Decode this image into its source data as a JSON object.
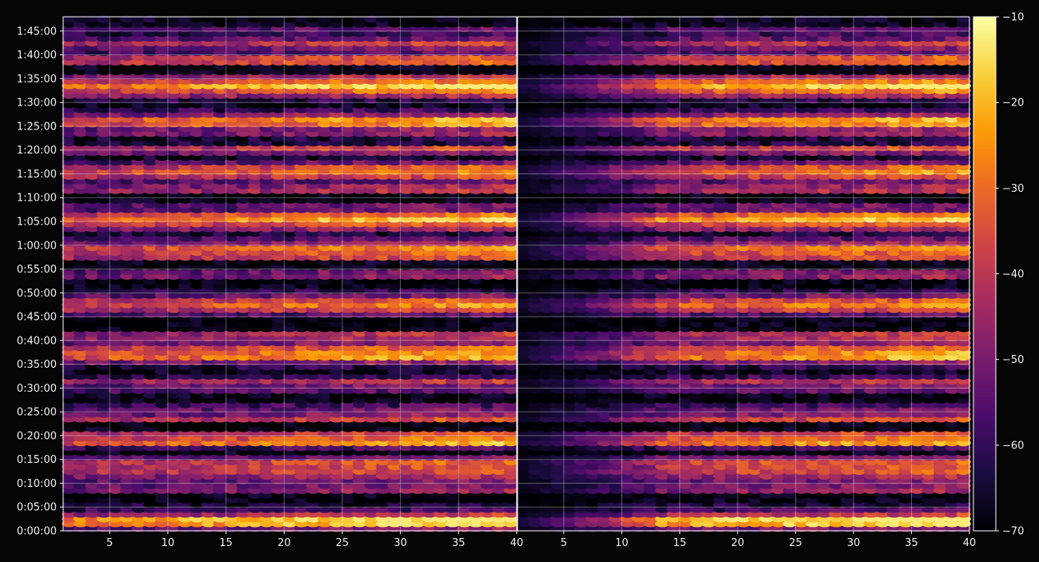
{
  "chart_data": [
    {
      "type": "heatmap",
      "panel": "left",
      "x_ticks": [
        "5",
        "10",
        "15",
        "20",
        "25",
        "30",
        "35",
        "40"
      ],
      "x_tick_values": [
        5,
        10,
        15,
        20,
        25,
        30,
        35,
        40
      ],
      "xlim": [
        1,
        40
      ],
      "y_ticks": [
        "0:00:00",
        "0:05:00",
        "0:10:00",
        "0:15:00",
        "0:20:00",
        "0:25:00",
        "0:30:00",
        "0:35:00",
        "0:40:00",
        "0:45:00",
        "0:50:00",
        "0:55:00",
        "1:00:00",
        "1:05:00",
        "1:10:00",
        "1:15:00",
        "1:20:00",
        "1:25:00",
        "1:30:00",
        "1:35:00",
        "1:40:00",
        "1:45:00"
      ],
      "y_tick_values_seconds": [
        0,
        300,
        600,
        900,
        1200,
        1500,
        1800,
        2100,
        2400,
        2700,
        3000,
        3300,
        3600,
        3900,
        4200,
        4500,
        4800,
        5100,
        5400,
        5700,
        6000,
        6300
      ],
      "ylim": [
        "0:00:00",
        "1:48:00"
      ],
      "grid": true,
      "value_range": [
        -70,
        -10
      ],
      "colormap": "inferno"
    },
    {
      "type": "heatmap",
      "panel": "right",
      "x_ticks": [
        "5",
        "10",
        "15",
        "20",
        "25",
        "30",
        "35",
        "40"
      ],
      "x_tick_values": [
        5,
        10,
        15,
        20,
        25,
        30,
        35,
        40
      ],
      "xlim": [
        1,
        40
      ],
      "ylim": [
        "0:00:00",
        "1:48:00"
      ],
      "grid": true,
      "value_range": [
        -70,
        -10
      ],
      "colormap": "inferno"
    }
  ],
  "colorbar": {
    "ticks": [
      "−10",
      "−20",
      "−30",
      "−40",
      "−50",
      "−60",
      "−70"
    ],
    "tick_values": [
      -10,
      -20,
      -30,
      -40,
      -50,
      -60,
      -70
    ],
    "range": [
      -70,
      -10
    ],
    "colors": [
      "#000004",
      "#1b0c41",
      "#4a0c6b",
      "#781c6d",
      "#a52c60",
      "#cf4446",
      "#ed6925",
      "#fb9b06",
      "#f7d13d",
      "#fcffa4"
    ]
  }
}
